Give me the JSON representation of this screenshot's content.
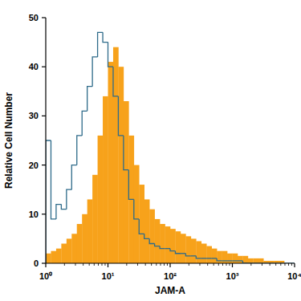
{
  "chart_data": {
    "type": "histogram",
    "x_label": "JAM-A",
    "y_label": "Relative Cell Number",
    "log": "x",
    "grid": false,
    "xlim": [
      1,
      10000
    ],
    "ylim": [
      0,
      50
    ],
    "xticks": [
      {
        "value": 1,
        "label": "10⁰"
      },
      {
        "value": 10,
        "label": "10¹"
      },
      {
        "value": 100,
        "label": "10²"
      },
      {
        "value": 1000,
        "label": "10³"
      },
      {
        "value": 10000,
        "label": "10⁴"
      }
    ],
    "yticks": [
      0,
      10,
      20,
      30,
      40,
      50
    ],
    "bins": [
      1,
      1.212,
      1.468,
      1.778,
      2.154,
      2.61,
      3.162,
      3.831,
      4.642,
      5.623,
      6.813,
      8.254,
      10,
      12.12,
      14.68,
      17.78,
      21.54,
      26.1,
      31.62,
      38.31,
      46.42,
      56.23,
      68.13,
      82.54,
      100,
      121.2,
      146.8,
      177.8,
      215.4,
      261,
      316.2,
      383.1,
      464.2,
      562.3,
      681.3,
      825.4,
      1000,
      1212,
      1468,
      1778,
      2154,
      2610,
      3162,
      3831,
      4642,
      5623,
      6813,
      8254,
      10000
    ],
    "series": [
      {
        "type": "bar",
        "color": "#f7a21b",
        "values": [
          2,
          2.5,
          3,
          4,
          5,
          6,
          8,
          10,
          13,
          18,
          26,
          34,
          41,
          44,
          40,
          33,
          26,
          20,
          16,
          13,
          11,
          9,
          8,
          7.5,
          7,
          6.5,
          6,
          5.5,
          5,
          4.5,
          4,
          3.5,
          3,
          2.5,
          2.5,
          2,
          2,
          1.5,
          1.5,
          1,
          1,
          1,
          0.5,
          0.5,
          0.5,
          0.5,
          0,
          0
        ]
      },
      {
        "type": "step",
        "color": "#2e6b8a",
        "values": [
          25,
          9,
          12,
          11,
          15,
          20,
          26,
          31,
          36,
          42,
          47,
          45,
          40,
          34,
          26,
          19,
          13,
          9,
          6,
          5,
          4,
          3.5,
          3,
          3,
          2.5,
          2,
          2,
          1.5,
          1.5,
          1,
          1,
          1,
          1,
          0.5,
          0.5,
          0.5,
          0.5,
          0.5,
          0,
          0,
          0,
          0,
          0,
          0,
          0,
          0,
          0,
          0
        ]
      }
    ]
  }
}
